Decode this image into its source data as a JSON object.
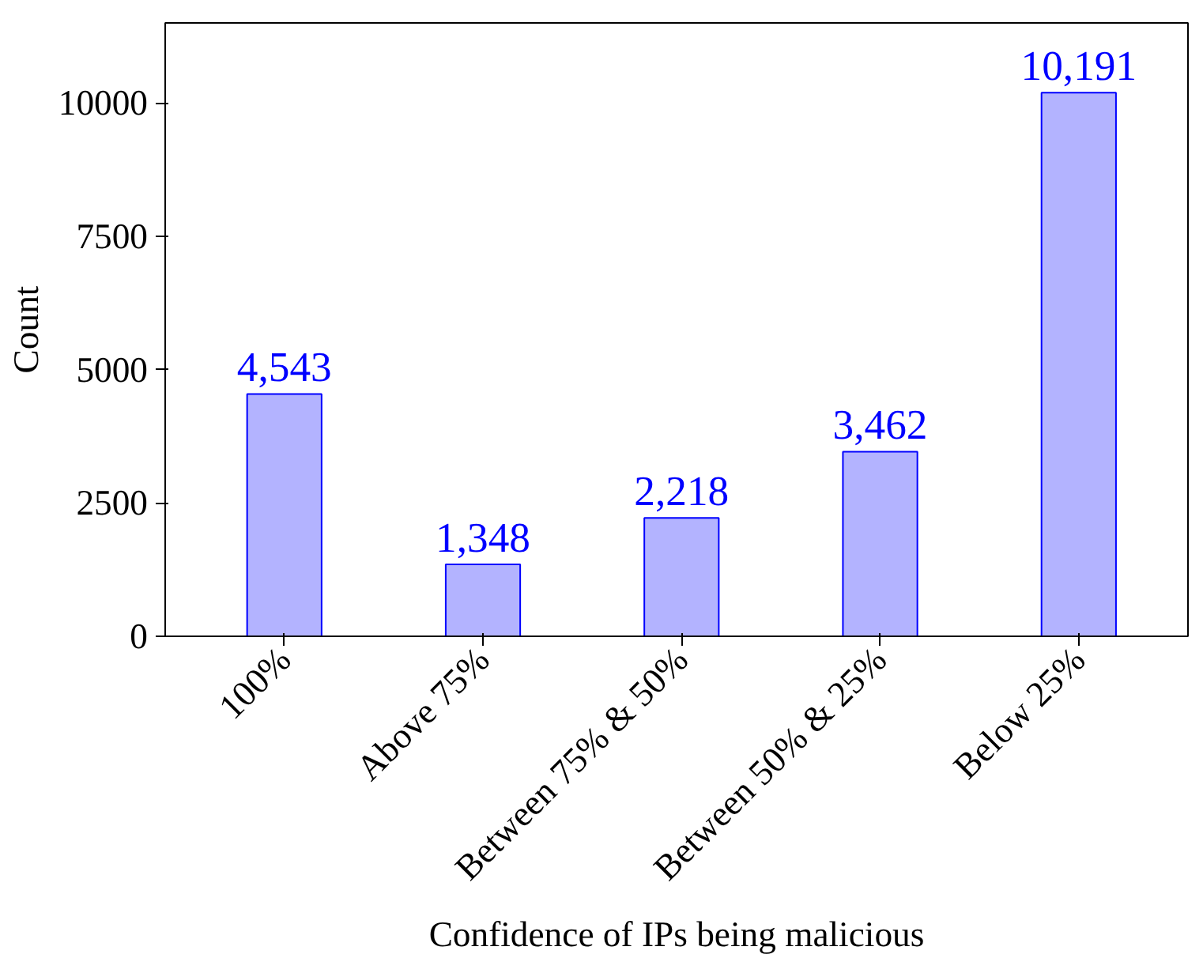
{
  "chart_data": {
    "type": "bar",
    "xlabel": "Confidence of IPs being malicious",
    "ylabel": "Count",
    "categories": [
      "100%",
      "Above 75%",
      "Between 75% & 50%",
      "Between 50% & 25%",
      "Below 25%"
    ],
    "values": [
      4543,
      1348,
      2218,
      3462,
      10191
    ],
    "value_labels": [
      "4,543",
      "1,348",
      "2,218",
      "3,462",
      "10,191"
    ],
    "color": "#b3b3ff",
    "ylim": [
      0,
      11500
    ],
    "yticks": [
      0,
      2500,
      5000,
      7500,
      10000
    ],
    "grid": false
  }
}
